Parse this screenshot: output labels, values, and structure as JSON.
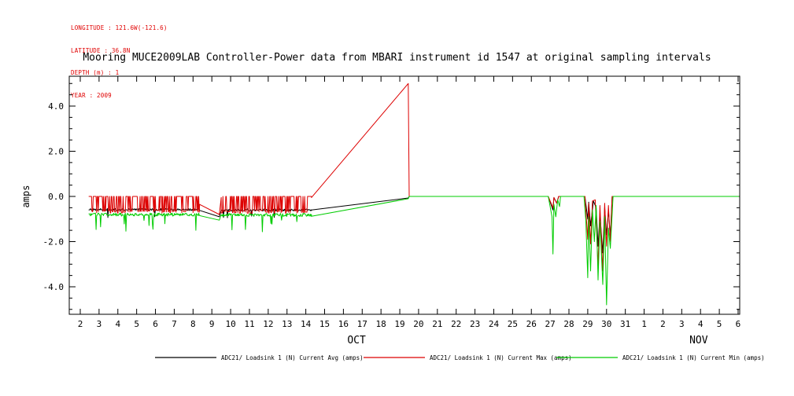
{
  "meta": {
    "longitude": "LONGITUDE : 121.6W(-121.6)",
    "latitude": "LATITUDE : 36.8N",
    "depth": "DEPTH (m) : 1",
    "year": "YEAR : 2009"
  },
  "colors": {
    "annotation": "#e00000",
    "axis": "#000000"
  },
  "chart_data": {
    "type": "line",
    "title": "Mooring MUCE2009LAB Controller-Power data from MBARI instrument id 1547 at original sampling intervals",
    "xlabel": "",
    "ylabel": "amps",
    "ylim": [
      -5.2,
      5.3
    ],
    "x_months": [
      "OCT",
      "NOV"
    ],
    "grid": false,
    "legend_position": "bottom",
    "yticks": [
      [
        -4,
        "-4.0"
      ],
      [
        -2,
        "-2.0"
      ],
      [
        0,
        "0.0"
      ],
      [
        2,
        "2.0"
      ],
      [
        4,
        "4.0"
      ]
    ],
    "ytick_minor_step": 0.5,
    "xticks": [
      [
        2,
        "2"
      ],
      [
        3,
        "3"
      ],
      [
        4,
        "4"
      ],
      [
        5,
        "5"
      ],
      [
        6,
        "6"
      ],
      [
        7,
        "7"
      ],
      [
        8,
        "8"
      ],
      [
        9,
        "9"
      ],
      [
        10,
        "10"
      ],
      [
        11,
        "11"
      ],
      [
        12,
        "12"
      ],
      [
        13,
        "13"
      ],
      [
        14,
        "14"
      ],
      [
        15,
        "15"
      ],
      [
        16,
        "16"
      ],
      [
        17,
        "17"
      ],
      [
        18,
        "18"
      ],
      [
        19,
        "19"
      ],
      [
        20,
        "20"
      ],
      [
        21,
        "21"
      ],
      [
        22,
        "22"
      ],
      [
        23,
        "23"
      ],
      [
        24,
        "24"
      ],
      [
        25,
        "25"
      ],
      [
        26,
        "26"
      ],
      [
        27,
        "27"
      ],
      [
        28,
        "28"
      ],
      [
        29,
        "29"
      ],
      [
        30,
        "30"
      ],
      [
        31,
        "31"
      ],
      [
        32,
        "1"
      ],
      [
        33,
        "2"
      ],
      [
        34,
        "3"
      ],
      [
        35,
        "4"
      ],
      [
        36,
        "5"
      ],
      [
        37,
        "6"
      ]
    ],
    "month_labels": [
      {
        "text": "OCT",
        "d": 16.7
      },
      {
        "text": "NOV",
        "d": 34.9
      }
    ],
    "series": [
      {
        "id": "avg",
        "name": "ADC21/ Loadsink 1 (N) Current Avg (amps)",
        "color": "#000000",
        "segments": [
          {
            "type": "jitter",
            "x0": 2.45,
            "x1": 8.35,
            "step": 0.03,
            "mean": -0.58,
            "amp": 0.05,
            "spike_p": 0.02,
            "spike_min": -0.95,
            "spike_max": -0.78,
            "seed": 21
          },
          {
            "type": "polyline",
            "points": [
              [
                8.35,
                -0.62
              ],
              [
                9.4,
                -0.9
              ],
              [
                9.5,
                -0.62
              ]
            ]
          },
          {
            "type": "jitter",
            "x0": 9.5,
            "x1": 14.3,
            "step": 0.03,
            "mean": -0.6,
            "amp": 0.05,
            "spike_p": 0.02,
            "spike_min": -0.95,
            "spike_max": -0.78,
            "seed": 22
          },
          {
            "type": "polyline",
            "points": [
              [
                14.3,
                -0.6
              ],
              [
                19.45,
                -0.07
              ],
              [
                19.5,
                0
              ],
              [
                26.9,
                0
              ]
            ]
          },
          {
            "type": "polyline",
            "points": [
              [
                27.15,
                -0.6
              ],
              [
                27.2,
                -0.05
              ],
              [
                27.35,
                -0.3
              ],
              [
                27.45,
                0
              ],
              [
                28.85,
                0
              ],
              [
                29.0,
                -1.0
              ],
              [
                29.05,
                -0.25
              ],
              [
                29.15,
                -1.3
              ],
              [
                29.3,
                -0.2
              ],
              [
                29.45,
                -0.5
              ],
              [
                29.55,
                -2.2
              ],
              [
                29.65,
                -0.8
              ],
              [
                29.8,
                -2.5
              ],
              [
                29.9,
                -0.5
              ],
              [
                30.0,
                -1.7
              ],
              [
                30.1,
                -0.6
              ],
              [
                30.2,
                -1.8
              ],
              [
                30.3,
                0
              ]
            ]
          },
          {
            "type": "polyline",
            "points": [
              [
                37.05,
                0
              ]
            ]
          }
        ]
      },
      {
        "id": "max",
        "name": "ADC21/ Loadsink 1 (N) Current Max (amps)",
        "color": "#dd0000",
        "segments": [
          {
            "type": "square_noise",
            "x0": 2.45,
            "x1": 8.35,
            "step": 0.03,
            "hi": 0.0,
            "lo": -0.68,
            "lo_jitter": 0.12,
            "p_hi2lo": 0.38,
            "p_lo2hi": 0.5,
            "seed": 11
          },
          {
            "type": "polyline",
            "points": [
              [
                8.35,
                -0.35
              ],
              [
                9.4,
                -0.8
              ],
              [
                9.5,
                -0.05
              ]
            ]
          },
          {
            "type": "square_noise",
            "x0": 9.5,
            "x1": 14.3,
            "step": 0.03,
            "hi": 0.0,
            "lo": -0.68,
            "lo_jitter": 0.12,
            "p_hi2lo": 0.38,
            "p_lo2hi": 0.5,
            "seed": 12
          },
          {
            "type": "polyline",
            "points": [
              [
                14.3,
                -0.05
              ],
              [
                19.45,
                5.0
              ],
              [
                19.5,
                0
              ],
              [
                26.9,
                0
              ]
            ]
          },
          {
            "type": "polyline",
            "points": [
              [
                27.15,
                -0.5
              ],
              [
                27.2,
                -0.05
              ],
              [
                27.35,
                -0.3
              ],
              [
                27.45,
                0
              ],
              [
                28.85,
                0
              ],
              [
                29.0,
                -1.9
              ],
              [
                29.05,
                -0.3
              ],
              [
                29.15,
                -2.1
              ],
              [
                29.25,
                -0.2
              ],
              [
                29.4,
                -0.15
              ],
              [
                29.55,
                -3.1
              ],
              [
                29.65,
                -0.4
              ],
              [
                29.8,
                -3.3
              ],
              [
                29.9,
                -0.3
              ],
              [
                30.0,
                -2.2
              ],
              [
                30.1,
                -0.4
              ],
              [
                30.2,
                -2.0
              ],
              [
                30.3,
                0
              ]
            ]
          },
          {
            "type": "polyline",
            "points": [
              [
                37.05,
                0
              ]
            ]
          }
        ]
      },
      {
        "id": "min",
        "name": "ADC21/ Loadsink 1 (N) Current Min (amps)",
        "color": "#00cc00",
        "segments": [
          {
            "type": "jitter",
            "x0": 2.45,
            "x1": 8.35,
            "step": 0.03,
            "mean": -0.8,
            "amp": 0.07,
            "spike_p": 0.04,
            "spike_min": -1.55,
            "spike_max": -1.05,
            "seed": 31
          },
          {
            "type": "polyline",
            "points": [
              [
                8.35,
                -0.85
              ],
              [
                9.4,
                -1.05
              ],
              [
                9.5,
                -0.8
              ]
            ]
          },
          {
            "type": "jitter",
            "x0": 9.5,
            "x1": 14.3,
            "step": 0.03,
            "mean": -0.82,
            "amp": 0.07,
            "spike_p": 0.04,
            "spike_min": -1.6,
            "spike_max": -1.05,
            "seed": 32
          },
          {
            "type": "polyline",
            "points": [
              [
                14.3,
                -0.88
              ],
              [
                19.45,
                -0.1
              ],
              [
                19.5,
                0
              ],
              [
                26.9,
                0
              ]
            ]
          },
          {
            "type": "polyline",
            "points": [
              [
                27.1,
                -0.9
              ],
              [
                27.15,
                -2.55
              ],
              [
                27.2,
                -0.35
              ],
              [
                27.3,
                -0.9
              ],
              [
                27.4,
                -0.15
              ],
              [
                27.5,
                -0.45
              ],
              [
                27.55,
                0
              ],
              [
                28.8,
                0
              ],
              [
                28.9,
                -1.1
              ],
              [
                29.0,
                -3.6
              ],
              [
                29.05,
                -0.9
              ],
              [
                29.15,
                -3.3
              ],
              [
                29.25,
                -0.6
              ],
              [
                29.35,
                -2.0
              ],
              [
                29.45,
                -0.4
              ],
              [
                29.55,
                -3.7
              ],
              [
                29.65,
                -1.1
              ],
              [
                29.8,
                -3.9
              ],
              [
                29.9,
                -0.9
              ],
              [
                30.0,
                -4.8
              ],
              [
                30.1,
                -1.4
              ],
              [
                30.2,
                -2.3
              ],
              [
                30.35,
                0
              ]
            ]
          },
          {
            "type": "polyline",
            "points": [
              [
                37.05,
                0
              ]
            ]
          }
        ]
      }
    ]
  }
}
